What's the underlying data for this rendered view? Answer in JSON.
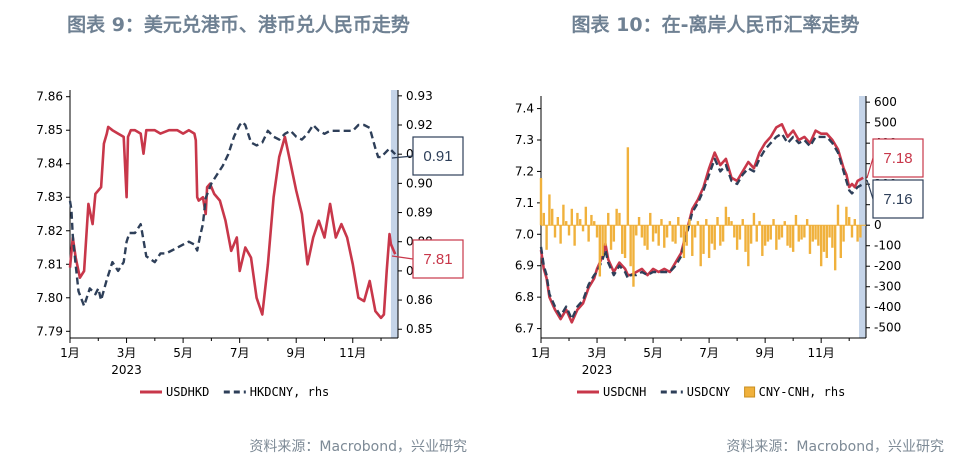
{
  "charts": [
    {
      "title": "图表 9：美元兑港币、港币兑人民币走势",
      "source": "资料来源：Macrobond，兴业研究",
      "year_label": "2023",
      "x_ticks": [
        "1月",
        "3月",
        "5月",
        "7月",
        "9月",
        "11月"
      ],
      "left_ticks": [
        "7.86",
        "7.85",
        "7.84",
        "7.83",
        "7.82",
        "7.81",
        "7.80",
        "7.79"
      ],
      "right_ticks": [
        "0.93",
        "0.92",
        "0.91",
        "0.90",
        "0.89",
        "0.88",
        "0.87",
        "0.86",
        "0.85"
      ],
      "legend": [
        "USDHKD",
        "HKDCNY, rhs"
      ],
      "callouts": [
        "0.91",
        "7.81"
      ]
    },
    {
      "title": "图表 10：在-离岸人民币汇率走势",
      "source": "资料来源：Macrobond，兴业研究",
      "year_label": "2023",
      "x_ticks": [
        "1月",
        "3月",
        "5月",
        "7月",
        "9月",
        "11月"
      ],
      "left_ticks": [
        "7.4",
        "7.3",
        "7.2",
        "7.1",
        "7.0",
        "6.9",
        "6.8",
        "6.7"
      ],
      "right_ticks": [
        "600",
        "500",
        "400",
        "300",
        "200",
        "100",
        "0",
        "-100",
        "-200",
        "-300",
        "-400",
        "-500"
      ],
      "legend": [
        "USDCNH",
        "USDCNY",
        "CNY-CNH, rhs"
      ],
      "callouts": [
        "7.18",
        "7.16"
      ]
    }
  ],
  "chart_data": [
    {
      "type": "line",
      "title": "图表 9：美元兑港币、港币兑人民币走势",
      "x_unit": "month of 2023",
      "ylim": [
        7.788,
        7.862
      ],
      "y2lim": [
        0.847,
        0.932
      ],
      "colors": {
        "USDHKD": "#c8374a",
        "HKDCNY": "#2e3f59",
        "highlight": "#c5d4e8"
      },
      "series": [
        {
          "name": "USDHKD",
          "axis": "left",
          "x": [
            0.0,
            0.1,
            0.2,
            0.35,
            0.5,
            0.65,
            0.8,
            0.9,
            1.1,
            1.2,
            1.3,
            1.35,
            1.5,
            1.7,
            1.9,
            2.0,
            2.05,
            2.1,
            2.15,
            2.3,
            2.5,
            2.6,
            2.7,
            2.8,
            3.0,
            3.2,
            3.5,
            3.8,
            4.0,
            4.2,
            4.4,
            4.45,
            4.5,
            4.55,
            4.7,
            4.8,
            4.85,
            4.95,
            5.1,
            5.3,
            5.5,
            5.7,
            5.9,
            6.0,
            6.2,
            6.4,
            6.6,
            6.8,
            7.0,
            7.2,
            7.4,
            7.6,
            7.8,
            8.0,
            8.2,
            8.4,
            8.6,
            8.8,
            9.0,
            9.2,
            9.4,
            9.6,
            9.8,
            10.0,
            10.2,
            10.4,
            10.6,
            10.8,
            11.0,
            11.1,
            11.2,
            11.3,
            11.35,
            11.5
          ],
          "values": [
            7.809,
            7.818,
            7.812,
            7.806,
            7.808,
            7.828,
            7.822,
            7.831,
            7.833,
            7.846,
            7.849,
            7.851,
            7.85,
            7.849,
            7.848,
            7.83,
            7.848,
            7.849,
            7.85,
            7.85,
            7.849,
            7.843,
            7.85,
            7.85,
            7.85,
            7.849,
            7.85,
            7.85,
            7.849,
            7.85,
            7.849,
            7.847,
            7.83,
            7.829,
            7.83,
            7.825,
            7.833,
            7.834,
            7.831,
            7.829,
            7.823,
            7.814,
            7.818,
            7.808,
            7.815,
            7.812,
            7.8,
            7.795,
            7.81,
            7.83,
            7.842,
            7.848,
            7.84,
            7.832,
            7.825,
            7.81,
            7.818,
            7.823,
            7.818,
            7.828,
            7.818,
            7.822,
            7.818,
            7.81,
            7.8,
            7.799,
            7.805,
            7.796,
            7.794,
            7.795,
            7.808,
            7.819,
            7.816,
            7.813
          ]
        },
        {
          "name": "HKDCNY",
          "axis": "right",
          "x": [
            0.0,
            0.05,
            0.1,
            0.2,
            0.3,
            0.5,
            0.7,
            0.9,
            1.0,
            1.1,
            1.3,
            1.5,
            1.7,
            1.9,
            2.0,
            2.1,
            2.3,
            2.5,
            2.7,
            3.0,
            3.2,
            3.4,
            3.6,
            3.8,
            4.0,
            4.2,
            4.4,
            4.5,
            4.6,
            4.7,
            4.8,
            5.0,
            5.2,
            5.4,
            5.6,
            5.8,
            6.0,
            6.1,
            6.2,
            6.4,
            6.6,
            6.8,
            7.0,
            7.2,
            7.4,
            7.6,
            7.8,
            8.0,
            8.2,
            8.4,
            8.6,
            8.8,
            9.0,
            9.2,
            9.4,
            9.6,
            9.8,
            10.0,
            10.2,
            10.4,
            10.6,
            10.8,
            10.9,
            11.0,
            11.1,
            11.2,
            11.3,
            11.5
          ],
          "values": [
            0.894,
            0.891,
            0.882,
            0.872,
            0.863,
            0.858,
            0.864,
            0.862,
            0.864,
            0.86,
            0.867,
            0.873,
            0.87,
            0.873,
            0.88,
            0.883,
            0.883,
            0.886,
            0.875,
            0.873,
            0.876,
            0.876,
            0.877,
            0.878,
            0.879,
            0.88,
            0.879,
            0.877,
            0.882,
            0.886,
            0.895,
            0.9,
            0.903,
            0.906,
            0.91,
            0.916,
            0.92,
            0.921,
            0.92,
            0.914,
            0.913,
            0.914,
            0.918,
            0.916,
            0.915,
            0.917,
            0.918,
            0.916,
            0.915,
            0.917,
            0.92,
            0.918,
            0.917,
            0.918,
            0.918,
            0.918,
            0.918,
            0.918,
            0.92,
            0.92,
            0.919,
            0.912,
            0.909,
            0.909,
            0.91,
            0.911,
            0.912,
            0.91
          ]
        }
      ],
      "highlight_x": [
        11.35,
        11.6
      ]
    },
    {
      "type": "line",
      "title": "图表 10：在-离岸人民币汇率走势",
      "x_unit": "month of 2023",
      "ylim": [
        6.67,
        7.44
      ],
      "y2lim": [
        -550,
        630
      ],
      "colors": {
        "USDCNH": "#c8374a",
        "USDCNY": "#2e3f59",
        "CNY-CNH": "#f0b13c",
        "highlight": "#c5d4e8"
      },
      "series": [
        {
          "name": "USDCNH",
          "axis": "left",
          "x": [
            0.0,
            0.1,
            0.2,
            0.3,
            0.5,
            0.7,
            0.9,
            1.0,
            1.1,
            1.2,
            1.3,
            1.5,
            1.7,
            1.9,
            2.0,
            2.1,
            2.2,
            2.3,
            2.4,
            2.6,
            2.8,
            3.0,
            3.1,
            3.2,
            3.4,
            3.6,
            3.8,
            4.0,
            4.2,
            4.4,
            4.6,
            4.8,
            5.0,
            5.2,
            5.4,
            5.6,
            5.8,
            6.0,
            6.2,
            6.4,
            6.6,
            6.8,
            7.0,
            7.2,
            7.4,
            7.6,
            7.8,
            8.0,
            8.2,
            8.4,
            8.6,
            8.8,
            9.0,
            9.2,
            9.4,
            9.6,
            9.8,
            10.0,
            10.2,
            10.4,
            10.6,
            10.8,
            10.9,
            11.0,
            11.1,
            11.2,
            11.3,
            11.5
          ],
          "values": [
            6.95,
            6.89,
            6.86,
            6.8,
            6.76,
            6.73,
            6.76,
            6.74,
            6.72,
            6.74,
            6.76,
            6.78,
            6.83,
            6.86,
            6.89,
            6.91,
            6.93,
            6.97,
            6.92,
            6.88,
            6.91,
            6.89,
            6.87,
            6.87,
            6.88,
            6.89,
            6.87,
            6.89,
            6.88,
            6.89,
            6.88,
            6.91,
            6.94,
            7.01,
            7.08,
            7.11,
            7.15,
            7.21,
            7.26,
            7.22,
            7.24,
            7.18,
            7.17,
            7.2,
            7.23,
            7.21,
            7.26,
            7.29,
            7.31,
            7.34,
            7.35,
            7.31,
            7.33,
            7.3,
            7.31,
            7.29,
            7.33,
            7.32,
            7.32,
            7.3,
            7.27,
            7.21,
            7.19,
            7.15,
            7.16,
            7.15,
            7.17,
            7.18
          ]
        },
        {
          "name": "USDCNY",
          "axis": "left",
          "x": [
            0.0,
            0.1,
            0.2,
            0.3,
            0.5,
            0.7,
            0.9,
            1.0,
            1.1,
            1.2,
            1.3,
            1.5,
            1.7,
            1.9,
            2.0,
            2.1,
            2.2,
            2.3,
            2.4,
            2.6,
            2.8,
            3.0,
            3.1,
            3.2,
            3.4,
            3.6,
            3.8,
            4.0,
            4.2,
            4.4,
            4.6,
            4.8,
            5.0,
            5.2,
            5.4,
            5.6,
            5.8,
            6.0,
            6.2,
            6.4,
            6.6,
            6.8,
            7.0,
            7.2,
            7.4,
            7.6,
            7.8,
            8.0,
            8.2,
            8.4,
            8.6,
            8.8,
            9.0,
            9.2,
            9.4,
            9.6,
            9.8,
            10.0,
            10.2,
            10.4,
            10.6,
            10.8,
            10.9,
            11.0,
            11.1,
            11.2,
            11.3,
            11.5
          ],
          "values": [
            6.96,
            6.9,
            6.87,
            6.81,
            6.77,
            6.74,
            6.77,
            6.75,
            6.73,
            6.75,
            6.77,
            6.79,
            6.84,
            6.87,
            6.88,
            6.9,
            6.92,
            6.95,
            6.91,
            6.87,
            6.9,
            6.88,
            6.86,
            6.87,
            6.87,
            6.88,
            6.87,
            6.88,
            6.88,
            6.88,
            6.88,
            6.9,
            6.93,
            7.0,
            7.07,
            7.1,
            7.14,
            7.19,
            7.24,
            7.2,
            7.22,
            7.17,
            7.16,
            7.19,
            7.21,
            7.2,
            7.24,
            7.27,
            7.29,
            7.31,
            7.32,
            7.29,
            7.31,
            7.29,
            7.3,
            7.28,
            7.31,
            7.31,
            7.31,
            7.29,
            7.26,
            7.2,
            7.17,
            7.14,
            7.13,
            7.14,
            7.15,
            7.16
          ]
        },
        {
          "name": "CNY-CNH, rhs",
          "axis": "right",
          "type": "bar",
          "x": [
            0.0,
            0.1,
            0.2,
            0.3,
            0.4,
            0.5,
            0.6,
            0.7,
            0.8,
            0.9,
            1.0,
            1.1,
            1.2,
            1.3,
            1.4,
            1.5,
            1.6,
            1.7,
            1.8,
            1.9,
            2.0,
            2.1,
            2.2,
            2.3,
            2.4,
            2.5,
            2.6,
            2.7,
            2.8,
            2.9,
            3.0,
            3.1,
            3.2,
            3.3,
            3.4,
            3.5,
            3.6,
            3.7,
            3.8,
            3.9,
            4.0,
            4.1,
            4.2,
            4.3,
            4.4,
            4.5,
            4.6,
            4.7,
            4.8,
            4.9,
            5.0,
            5.1,
            5.2,
            5.3,
            5.4,
            5.5,
            5.6,
            5.7,
            5.8,
            5.9,
            6.0,
            6.1,
            6.2,
            6.3,
            6.4,
            6.5,
            6.6,
            6.7,
            6.8,
            6.9,
            7.0,
            7.1,
            7.2,
            7.3,
            7.4,
            7.5,
            7.6,
            7.7,
            7.8,
            7.9,
            8.0,
            8.1,
            8.2,
            8.3,
            8.4,
            8.5,
            8.6,
            8.7,
            8.8,
            8.9,
            9.0,
            9.1,
            9.2,
            9.3,
            9.4,
            9.5,
            9.6,
            9.7,
            9.8,
            9.9,
            10.0,
            10.1,
            10.2,
            10.3,
            10.4,
            10.5,
            10.6,
            10.7,
            10.8,
            10.9,
            11.0,
            11.1,
            11.2,
            11.3,
            11.4
          ],
          "values": [
            230,
            60,
            -120,
            150,
            80,
            -60,
            40,
            -90,
            100,
            20,
            -50,
            80,
            -100,
            60,
            30,
            -30,
            90,
            -80,
            50,
            20,
            -60,
            -250,
            -150,
            -100,
            60,
            -120,
            -80,
            80,
            60,
            -140,
            -160,
            380,
            -200,
            -300,
            -50,
            40,
            -60,
            -100,
            -120,
            60,
            -80,
            -40,
            -100,
            30,
            -110,
            -60,
            20,
            -80,
            -90,
            40,
            -60,
            -160,
            -100,
            30,
            -150,
            -60,
            20,
            -200,
            -140,
            30,
            -160,
            -90,
            -120,
            40,
            -100,
            -80,
            90,
            40,
            20,
            -60,
            -120,
            -70,
            30,
            -130,
            -200,
            -90,
            60,
            -80,
            20,
            -150,
            -100,
            -80,
            -70,
            30,
            -120,
            -70,
            -60,
            20,
            -100,
            -110,
            -130,
            50,
            -80,
            -70,
            -60,
            30,
            -140,
            -80,
            -70,
            -100,
            -200,
            -130,
            -160,
            -60,
            -110,
            -220,
            100,
            -160,
            -80,
            90,
            40,
            -60,
            30,
            -80,
            -60
          ]
        }
      ],
      "highlight_x": [
        11.35,
        11.6
      ]
    }
  ]
}
